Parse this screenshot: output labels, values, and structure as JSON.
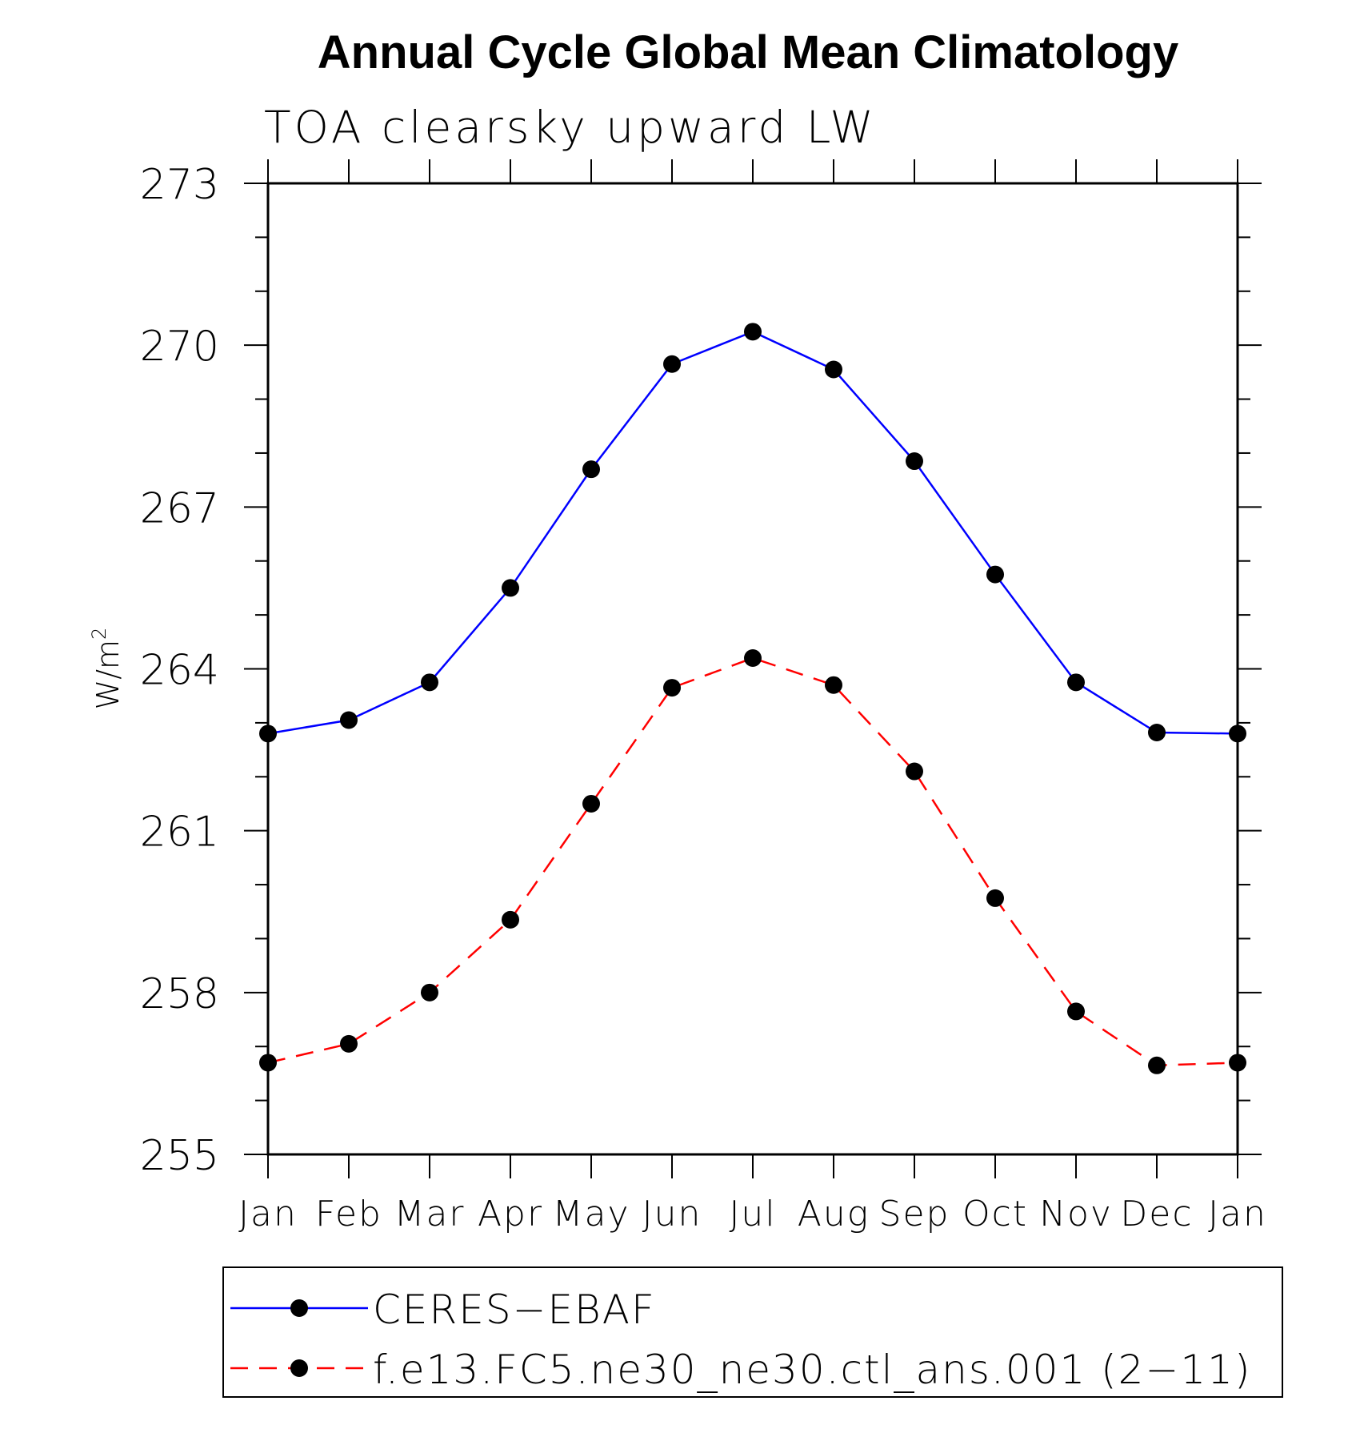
{
  "chart_data": {
    "type": "line",
    "title": "Annual Cycle Global Mean Climatology",
    "subtitle": "TOA clearsky upward LW",
    "ylabel_base": "W/m",
    "ylabel_sup": "2",
    "categories": [
      "Jan",
      "Feb",
      "Mar",
      "Apr",
      "May",
      "Jun",
      "Jul",
      "Aug",
      "Sep",
      "Oct",
      "Nov",
      "Dec",
      "Jan"
    ],
    "ylim": [
      255,
      273
    ],
    "yticks": [
      "255",
      "258",
      "261",
      "264",
      "267",
      "270",
      "273"
    ],
    "grid": false,
    "legend_position": "bottom",
    "series": [
      {
        "name": "CERES−EBAF",
        "color": "#0000ff",
        "dash": "solid",
        "marker": "filled-circle",
        "values": [
          262.8,
          263.05,
          263.75,
          265.5,
          267.7,
          269.65,
          270.25,
          269.55,
          267.85,
          265.75,
          263.75,
          262.82,
          262.8
        ]
      },
      {
        "name": "f.e13.FC5.ne30_ne30.ctl_ans.001 (2−11)",
        "color": "#ff0000",
        "dash": "dashed",
        "marker": "filled-circle",
        "values": [
          256.7,
          257.05,
          258.0,
          259.35,
          261.5,
          263.65,
          264.2,
          263.7,
          262.1,
          259.75,
          257.65,
          256.65,
          256.7
        ]
      }
    ]
  }
}
